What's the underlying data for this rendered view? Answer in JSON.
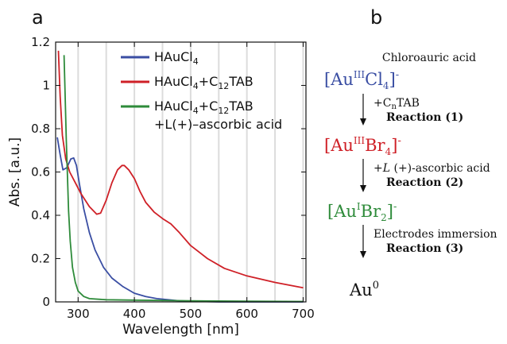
{
  "panel_a": {
    "label": "a"
  },
  "panel_b": {
    "label": "b"
  },
  "chart_data": {
    "type": "line",
    "xlabel": "Wavelength [nm]",
    "ylabel": "Abs. [a.u.]",
    "xlim": [
      260,
      705
    ],
    "ylim": [
      0,
      1.2
    ],
    "xticks": [
      300,
      400,
      500,
      600,
      700
    ],
    "yticks": [
      0,
      0.2,
      0.4,
      0.6,
      0.8,
      1.0,
      1.2
    ],
    "ytick_labels": [
      "0",
      "0.2",
      "0.4",
      "0.6",
      "0.8",
      "1",
      "1.2"
    ],
    "vertical_gridlines_x": [
      300,
      350,
      400,
      450,
      500,
      550,
      600,
      650,
      700
    ],
    "legend_position": "top-right",
    "series": [
      {
        "name": "HAuCl4",
        "legend_parts": {
          "main": "HAuCl",
          "sub": "4"
        },
        "color": "#3a4ea3",
        "x": [
          263,
          268,
          273,
          280,
          287,
          292,
          297,
          302,
          310,
          320,
          330,
          345,
          360,
          380,
          400,
          420,
          440,
          460,
          480,
          500,
          550,
          600,
          650,
          700
        ],
        "y": [
          0.76,
          0.68,
          0.61,
          0.62,
          0.66,
          0.665,
          0.63,
          0.55,
          0.43,
          0.32,
          0.24,
          0.16,
          0.11,
          0.07,
          0.04,
          0.025,
          0.015,
          0.01,
          0.005,
          0.003,
          0.0,
          0.0,
          0.0,
          0.0
        ]
      },
      {
        "name": "HAuCl4+C12TAB",
        "legend_parts": {
          "main": "HAuCl",
          "sub": "4",
          "mid": "+C",
          "sub2": "12",
          "end": "TAB"
        },
        "color": "#cf2027",
        "x": [
          265,
          268,
          272,
          278,
          285,
          295,
          305,
          320,
          333,
          340,
          350,
          360,
          370,
          378,
          382,
          390,
          400,
          410,
          420,
          435,
          450,
          465,
          480,
          500,
          530,
          560,
          600,
          650,
          700
        ],
        "y": [
          1.16,
          0.95,
          0.77,
          0.66,
          0.6,
          0.55,
          0.5,
          0.44,
          0.405,
          0.41,
          0.47,
          0.55,
          0.61,
          0.63,
          0.63,
          0.61,
          0.57,
          0.51,
          0.46,
          0.415,
          0.385,
          0.36,
          0.32,
          0.26,
          0.2,
          0.155,
          0.12,
          0.09,
          0.065
        ]
      },
      {
        "name": "HAuCl4+C12TAB +L(+)-ascorbic acid",
        "legend_parts": {
          "main": "HAuCl",
          "sub": "4",
          "mid": "+C",
          "sub2": "12",
          "end": "TAB",
          "line2": "+L(+)–ascorbic acid"
        },
        "color": "#2e8b3a",
        "x": [
          275,
          277,
          279,
          281,
          283,
          286,
          290,
          295,
          300,
          310,
          320,
          350,
          400,
          500,
          600,
          700
        ],
        "y": [
          1.14,
          0.95,
          0.75,
          0.58,
          0.42,
          0.28,
          0.16,
          0.09,
          0.05,
          0.025,
          0.015,
          0.01,
          0.008,
          0.005,
          0.003,
          0.002
        ]
      }
    ]
  },
  "scheme": {
    "start_caption": "Chloroauric acid",
    "species": [
      {
        "pre": "[Au",
        "ox": "III",
        "mid": "Cl",
        "sub": "4",
        "post": "]",
        "charge": "-",
        "color": "#3a4ea3"
      },
      {
        "pre": "[Au",
        "ox": "III",
        "mid": "Br",
        "sub": "4",
        "post": "]",
        "charge": "-",
        "color": "#cf2027"
      },
      {
        "pre": "[Au",
        "ox": "I",
        "mid": "Br",
        "sub": "2",
        "post": "]",
        "charge": "-",
        "color": "#2e8b3a"
      },
      {
        "pre": "Au",
        "ox": "",
        "mid": "",
        "sub": "",
        "post": "",
        "charge": "0",
        "color": "#111111"
      }
    ],
    "steps": [
      {
        "reagent_pre": "+C",
        "reagent_sub": "n",
        "reagent_post": "TAB",
        "reaction": "Reaction (1)"
      },
      {
        "reagent_pre": "+",
        "reagent_italic": "L",
        "reagent_post": " (+)-ascorbic acid",
        "reaction": "Reaction (2)"
      },
      {
        "reagent_pre": "Electrodes immersion",
        "reaction": "Reaction (3)"
      }
    ]
  }
}
